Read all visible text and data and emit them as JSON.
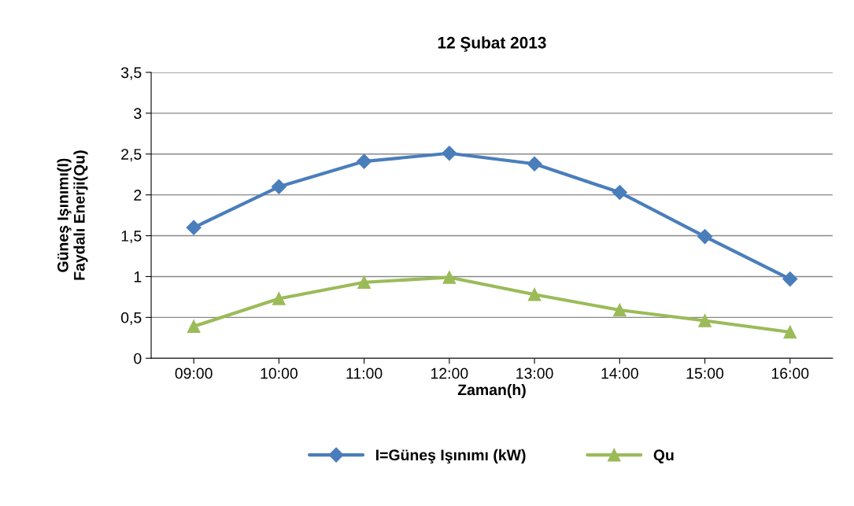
{
  "chart_data": {
    "type": "line",
    "title": "12 Şubat 2013",
    "xlabel": "Zaman(h)",
    "ylabel": "Güneş Işınımı(I)\nFaydalı Enerji(Qu)",
    "categories": [
      "09:00",
      "10:00",
      "11:00",
      "12:00",
      "13:00",
      "14:00",
      "15:00",
      "16:00"
    ],
    "series": [
      {
        "name": "I=Güneş Işınımı (kW)",
        "color": "#4a7ebb",
        "marker": "diamond",
        "values": [
          1.6,
          2.1,
          2.41,
          2.51,
          2.38,
          2.03,
          1.49,
          0.97
        ]
      },
      {
        "name": "Qu",
        "color": "#9bbb59",
        "marker": "triangle",
        "values": [
          0.39,
          0.73,
          0.93,
          0.99,
          0.78,
          0.59,
          0.46,
          0.32
        ]
      }
    ],
    "ylim": [
      0,
      3.5
    ],
    "yticks": [
      0,
      {
        "value": 0.5,
        "label": "0,5"
      },
      1,
      {
        "value": 1.5,
        "label": "1,5"
      },
      2,
      {
        "value": 2.5,
        "label": "2,5"
      },
      3,
      {
        "value": 3.5,
        "label": "3,5"
      }
    ],
    "grid": "y",
    "legend": "bottom"
  }
}
